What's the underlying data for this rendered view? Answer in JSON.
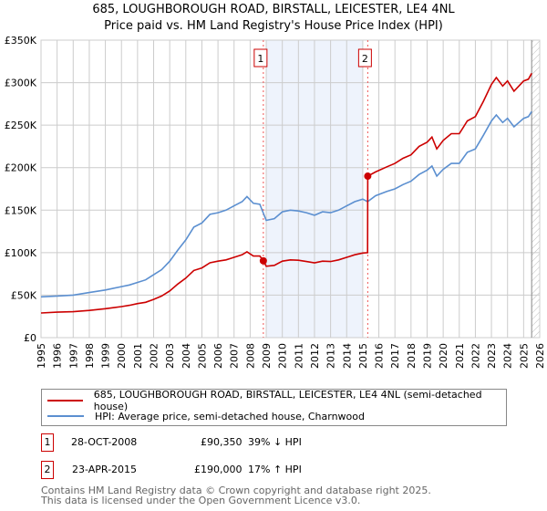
{
  "chart_data": {
    "type": "line",
    "title": "685, LOUGHBOROUGH ROAD, BIRSTALL, LEICESTER, LE4 4NL",
    "subtitle": "Price paid vs. HM Land Registry's House Price Index (HPI)",
    "xlim": [
      1995,
      2026
    ],
    "ylim": [
      0,
      350000
    ],
    "x_ticks": [
      "1995",
      "1996",
      "1997",
      "1998",
      "1999",
      "2000",
      "2001",
      "2002",
      "2003",
      "2004",
      "2005",
      "2006",
      "2007",
      "2008",
      "2009",
      "2010",
      "2011",
      "2012",
      "2013",
      "2014",
      "2015",
      "2016",
      "2017",
      "2018",
      "2019",
      "2020",
      "2021",
      "2022",
      "2023",
      "2024",
      "2025",
      "2026"
    ],
    "y_ticks": [
      {
        "v": 0,
        "l": "£0"
      },
      {
        "v": 50000,
        "l": "£50K"
      },
      {
        "v": 100000,
        "l": "£100K"
      },
      {
        "v": 150000,
        "l": "£150K"
      },
      {
        "v": 200000,
        "l": "£200K"
      },
      {
        "v": 250000,
        "l": "£250K"
      },
      {
        "v": 300000,
        "l": "£300K"
      },
      {
        "v": 350000,
        "l": "£350K"
      }
    ],
    "grid": true,
    "shaded_range": [
      2009.0,
      2015.0
    ],
    "hatched_from": 2025.5,
    "series": [
      {
        "name": "685, LOUGHBOROUGH ROAD, BIRSTALL, LEICESTER, LE4 4NL (semi-detached house)",
        "color": "#cc0000",
        "x": [
          1995,
          1996,
          1997,
          1998,
          1999,
          2000,
          2000.5,
          2001,
          2001.5,
          2002,
          2002.5,
          2003,
          2003.5,
          2004,
          2004.5,
          2005,
          2005.5,
          2006,
          2006.5,
          2007,
          2007.5,
          2007.8,
          2008.2,
          2008.6,
          2008.82,
          2009,
          2009.5,
          2010,
          2010.5,
          2011,
          2011.5,
          2012,
          2012.5,
          2013,
          2013.5,
          2014,
          2014.5,
          2015,
          2015.3,
          2015.31,
          2015.8,
          2016.5,
          2017,
          2017.5,
          2018,
          2018.5,
          2019,
          2019.3,
          2019.6,
          2020,
          2020.5,
          2021,
          2021.5,
          2022,
          2022.5,
          2023,
          2023.3,
          2023.7,
          2024,
          2024.4,
          2025,
          2025.3,
          2025.5
        ],
        "values": [
          29000,
          30000,
          30500,
          32000,
          34000,
          36500,
          38000,
          40000,
          41500,
          45000,
          49000,
          55000,
          63000,
          70000,
          79000,
          82000,
          88000,
          90000,
          91500,
          94500,
          97500,
          101000,
          96000,
          96000,
          90350,
          84000,
          85000,
          90000,
          91500,
          91000,
          89500,
          88000,
          90000,
          89500,
          91500,
          94500,
          97500,
          99500,
          100000,
          190000,
          195000,
          201000,
          205000,
          211000,
          215000,
          225000,
          230000,
          236000,
          222000,
          232000,
          240000,
          240000,
          255000,
          260000,
          278000,
          298000,
          306000,
          296000,
          302000,
          290000,
          302000,
          304000,
          311000
        ]
      },
      {
        "name": "HPI: Average price, semi-detached house, Charnwood",
        "color": "#5b8fd0",
        "x": [
          1995,
          1996,
          1997,
          1998,
          1999,
          2000,
          2000.5,
          2001,
          2001.5,
          2002,
          2002.5,
          2003,
          2003.5,
          2004,
          2004.5,
          2005,
          2005.5,
          2006,
          2006.5,
          2007,
          2007.5,
          2007.8,
          2008.2,
          2008.6,
          2009,
          2009.5,
          2010,
          2010.5,
          2011,
          2011.5,
          2012,
          2012.5,
          2013,
          2013.5,
          2014,
          2014.5,
          2015,
          2015.3,
          2015.8,
          2016.5,
          2017,
          2017.5,
          2018,
          2018.5,
          2019,
          2019.3,
          2019.6,
          2020,
          2020.5,
          2021,
          2021.5,
          2022,
          2022.5,
          2023,
          2023.3,
          2023.7,
          2024,
          2024.4,
          2025,
          2025.3,
          2025.5
        ],
        "values": [
          48000,
          49000,
          50000,
          53000,
          56000,
          60000,
          62000,
          65000,
          68000,
          74000,
          80000,
          90000,
          103000,
          115000,
          130000,
          135000,
          145000,
          147000,
          150000,
          155000,
          160000,
          166000,
          158000,
          157000,
          138000,
          140000,
          148000,
          150000,
          149000,
          147000,
          144000,
          148000,
          147000,
          150000,
          155000,
          160000,
          163000,
          160000,
          167000,
          172000,
          175000,
          180000,
          184000,
          192000,
          197000,
          202000,
          190000,
          198000,
          205000,
          205000,
          218000,
          222000,
          238000,
          255000,
          262000,
          253000,
          258000,
          248000,
          258000,
          260000,
          266000
        ]
      }
    ],
    "sales": [
      {
        "label": "1",
        "x": 2008.82,
        "date": "28-OCT-2008",
        "price": "£90,350",
        "value": 90350,
        "hpi": "39% ↓ HPI"
      },
      {
        "label": "2",
        "x": 2015.31,
        "date": "23-APR-2015",
        "price": "£190,000",
        "value": 190000,
        "hpi": "17% ↑ HPI"
      }
    ]
  },
  "footer": {
    "line1": "Contains HM Land Registry data © Crown copyright and database right 2025.",
    "line2": "This data is licensed under the Open Government Licence v3.0."
  }
}
